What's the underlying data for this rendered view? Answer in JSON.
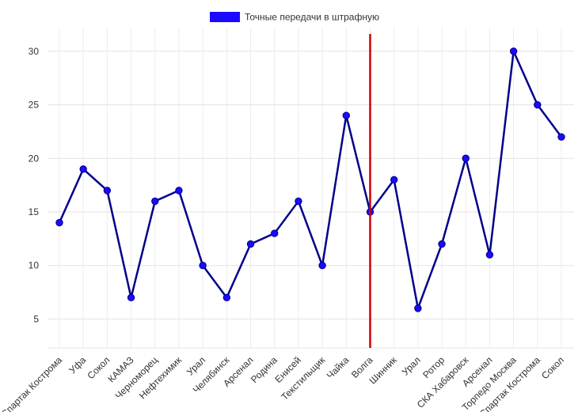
{
  "chart_data": {
    "type": "line",
    "title": "",
    "xlabel": "",
    "ylabel": "",
    "categories": [
      "Спартак Кострома",
      "Уфа",
      "Сокол",
      "КАМАЗ",
      "Черноморец",
      "Нефтехимик",
      "Урал",
      "Челябинск",
      "Арсенал",
      "Родина",
      "Енисей",
      "Текстильщик",
      "Чайка",
      "Волга",
      "Шинник",
      "Урал",
      "Ротор",
      "СКА Хабаровск",
      "Арсенал",
      "Торпедо Москва",
      "Спартак Кострома",
      "Сокол"
    ],
    "series": [
      {
        "name": "Точные передачи в штрафную",
        "values": [
          14,
          19,
          17,
          7,
          16,
          17,
          10,
          7,
          12,
          13,
          16,
          10,
          24,
          15,
          18,
          6,
          12,
          20,
          11,
          30,
          25,
          22
        ],
        "color": "#1a0aff",
        "line_color": "#00008b"
      }
    ],
    "ylim": [
      2.3,
      32.2
    ],
    "yticks": [
      5,
      10,
      15,
      20,
      25,
      30
    ],
    "grid": true,
    "legend": {
      "position": "top-center",
      "label": "Точные передачи в штрафную",
      "color": "#1a0aff"
    },
    "marker_line": {
      "category_index": 13,
      "category": "Волга",
      "color": "#cc0000"
    }
  }
}
